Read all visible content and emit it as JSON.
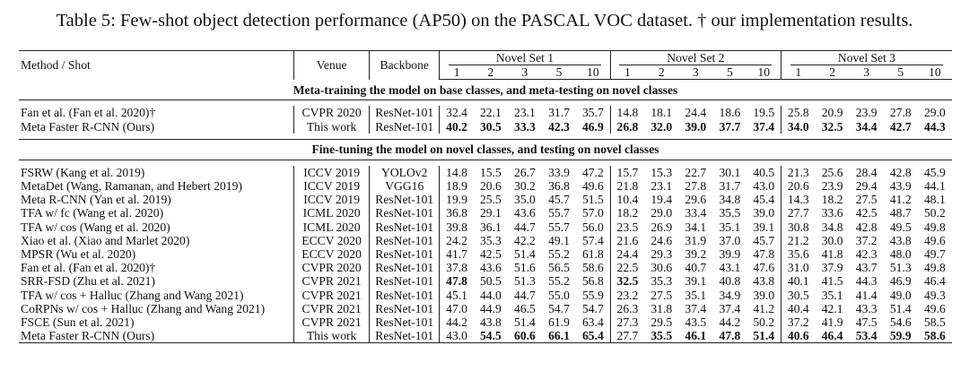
{
  "caption": "Table 5: Few-shot object detection performance (AP50) on the PASCAL VOC dataset. † our implementation results.",
  "header": {
    "method": "Method / Shot",
    "venue": "Venue",
    "backbone": "Backbone",
    "sets": [
      "Novel Set 1",
      "Novel Set 2",
      "Novel Set 3"
    ],
    "shots": [
      "1",
      "2",
      "3",
      "5",
      "10"
    ]
  },
  "sections": [
    {
      "title": "Meta-training the model on base classes, and meta-testing on novel classes",
      "rows": [
        {
          "method": "Fan et al. (Fan et al. 2020)†",
          "venue": "CVPR 2020",
          "backbone": "ResNet-101",
          "values": [
            "32.4",
            "22.1",
            "23.1",
            "31.7",
            "35.7",
            "14.8",
            "18.1",
            "24.4",
            "18.6",
            "19.5",
            "25.8",
            "20.9",
            "23.9",
            "27.8",
            "29.0"
          ],
          "bold": []
        },
        {
          "method": "Meta Faster R-CNN (Ours)",
          "venue": "This work",
          "backbone": "ResNet-101",
          "values": [
            "40.2",
            "30.5",
            "33.3",
            "42.3",
            "46.9",
            "26.8",
            "32.0",
            "39.0",
            "37.7",
            "37.4",
            "34.0",
            "32.5",
            "34.4",
            "42.7",
            "44.3"
          ],
          "bold": [
            0,
            1,
            2,
            3,
            4,
            5,
            6,
            7,
            8,
            9,
            10,
            11,
            12,
            13,
            14
          ]
        }
      ]
    },
    {
      "title": "Fine-tuning the model on novel classes, and testing on novel classes",
      "rows": [
        {
          "method": "FSRW (Kang et al. 2019)",
          "venue": "ICCV 2019",
          "backbone": "YOLOv2",
          "values": [
            "14.8",
            "15.5",
            "26.7",
            "33.9",
            "47.2",
            "15.7",
            "15.3",
            "22.7",
            "30.1",
            "40.5",
            "21.3",
            "25.6",
            "28.4",
            "42.8",
            "45.9"
          ],
          "bold": []
        },
        {
          "method": "MetaDet (Wang, Ramanan, and Hebert 2019)",
          "venue": "ICCV 2019",
          "backbone": "VGG16",
          "values": [
            "18.9",
            "20.6",
            "30.2",
            "36.8",
            "49.6",
            "21.8",
            "23.1",
            "27.8",
            "31.7",
            "43.0",
            "20.6",
            "23.9",
            "29.4",
            "43.9",
            "44.1"
          ],
          "bold": []
        },
        {
          "method": "Meta R-CNN (Yan et al. 2019)",
          "venue": "ICCV 2019",
          "backbone": "ResNet-101",
          "values": [
            "19.9",
            "25.5",
            "35.0",
            "45.7",
            "51.5",
            "10.4",
            "19.4",
            "29.6",
            "34.8",
            "45.4",
            "14.3",
            "18.2",
            "27.5",
            "41.2",
            "48.1"
          ],
          "bold": []
        },
        {
          "method": "TFA w/ fc (Wang et al. 2020)",
          "venue": "ICML 2020",
          "backbone": "ResNet-101",
          "values": [
            "36.8",
            "29.1",
            "43.6",
            "55.7",
            "57.0",
            "18.2",
            "29.0",
            "33.4",
            "35.5",
            "39.0",
            "27.7",
            "33.6",
            "42.5",
            "48.7",
            "50.2"
          ],
          "bold": []
        },
        {
          "method": "TFA w/ cos (Wang et al. 2020)",
          "venue": "ICML 2020",
          "backbone": "ResNet-101",
          "values": [
            "39.8",
            "36.1",
            "44.7",
            "55.7",
            "56.0",
            "23.5",
            "26.9",
            "34.1",
            "35.1",
            "39.1",
            "30.8",
            "34.8",
            "42.8",
            "49.5",
            "49.8"
          ],
          "bold": []
        },
        {
          "method": "Xiao et al. (Xiao and Marlet 2020)",
          "venue": "ECCV 2020",
          "backbone": "ResNet-101",
          "values": [
            "24.2",
            "35.3",
            "42.2",
            "49.1",
            "57.4",
            "21.6",
            "24.6",
            "31.9",
            "37.0",
            "45.7",
            "21.2",
            "30.0",
            "37.2",
            "43.8",
            "49.6"
          ],
          "bold": []
        },
        {
          "method": "MPSR (Wu et al. 2020)",
          "venue": "ECCV 2020",
          "backbone": "ResNet-101",
          "values": [
            "41.7",
            "42.5",
            "51.4",
            "55.2",
            "61.8",
            "24.4",
            "29.3",
            "39.2",
            "39.9",
            "47.8",
            "35.6",
            "41.8",
            "42.3",
            "48.0",
            "49.7"
          ],
          "bold": []
        },
        {
          "method": "Fan et al. (Fan et al. 2020)†",
          "venue": "CVPR 2020",
          "backbone": "ResNet-101",
          "values": [
            "37.8",
            "43.6",
            "51.6",
            "56.5",
            "58.6",
            "22.5",
            "30.6",
            "40.7",
            "43.1",
            "47.6",
            "31.0",
            "37.9",
            "43.7",
            "51.3",
            "49.8"
          ],
          "bold": []
        },
        {
          "method": "SRR-FSD (Zhu et al. 2021)",
          "venue": "CVPR 2021",
          "backbone": "ResNet-101",
          "values": [
            "47.8",
            "50.5",
            "51.3",
            "55.2",
            "56.8",
            "32.5",
            "35.3",
            "39.1",
            "40.8",
            "43.8",
            "40.1",
            "41.5",
            "44.3",
            "46.9",
            "46.4"
          ],
          "bold": [
            0,
            5
          ]
        },
        {
          "method": "TFA w/ cos + Halluc (Zhang and Wang 2021)",
          "venue": "CVPR 2021",
          "backbone": "ResNet-101",
          "values": [
            "45.1",
            "44.0",
            "44.7",
            "55.0",
            "55.9",
            "23.2",
            "27.5",
            "35.1",
            "34.9",
            "39.0",
            "30.5",
            "35.1",
            "41.4",
            "49.0",
            "49.3"
          ],
          "bold": []
        },
        {
          "method": "CoRPNs w/ cos + Halluc (Zhang and Wang 2021)",
          "venue": "CVPR 2021",
          "backbone": "ResNet-101",
          "values": [
            "47.0",
            "44.9",
            "46.5",
            "54.7",
            "54.7",
            "26.3",
            "31.8",
            "37.4",
            "37.4",
            "41.2",
            "40.4",
            "42.1",
            "43.3",
            "51.4",
            "49.6"
          ],
          "bold": []
        },
        {
          "method": "FSCE (Sun et al. 2021)",
          "venue": "CVPR 2021",
          "backbone": "ResNet-101",
          "values": [
            "44.2",
            "43.8",
            "51.4",
            "61.9",
            "63.4",
            "27.3",
            "29.5",
            "43.5",
            "44.2",
            "50.2",
            "37.2",
            "41.9",
            "47.5",
            "54.6",
            "58.5"
          ],
          "bold": []
        },
        {
          "method": "Meta Faster R-CNN (Ours)",
          "venue": "This work",
          "backbone": "ResNet-101",
          "values": [
            "43.0",
            "54.5",
            "60.6",
            "66.1",
            "65.4",
            "27.7",
            "35.5",
            "46.1",
            "47.8",
            "51.4",
            "40.6",
            "46.4",
            "53.4",
            "59.9",
            "58.6"
          ],
          "bold": [
            1,
            2,
            3,
            4,
            6,
            7,
            8,
            9,
            10,
            11,
            12,
            13,
            14
          ]
        }
      ]
    }
  ]
}
